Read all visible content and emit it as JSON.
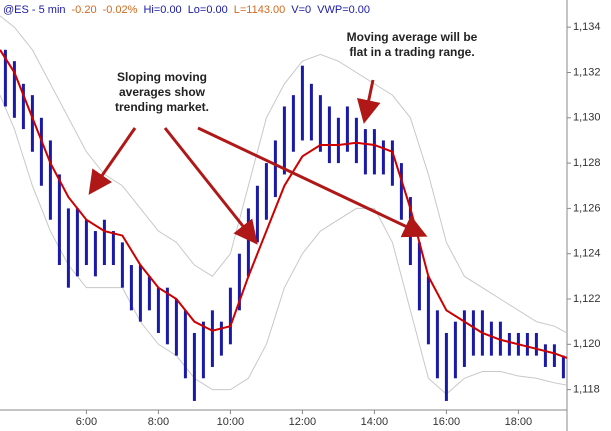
{
  "chart_data": {
    "type": "ohlc",
    "header": [
      {
        "text": "@ES - 5 min",
        "color": "#1a1aa8"
      },
      {
        "text": "-0.20",
        "color": "#d2691e"
      },
      {
        "text": "-0.02%",
        "color": "#d2691e"
      },
      {
        "text": "Hi=0.00",
        "color": "#1a1aa8"
      },
      {
        "text": "Lo=0.00",
        "color": "#1a1aa8"
      },
      {
        "text": "L=1143.00",
        "color": "#d2691e"
      },
      {
        "text": "V=0",
        "color": "#1a1aa8"
      },
      {
        "text": "VWP=0.00",
        "color": "#1a1aa8"
      }
    ],
    "annotations": [
      {
        "lines": [
          "Moving average will be",
          "flat in a trading range."
        ]
      },
      {
        "lines": [
          "Sloping moving",
          "averages show",
          "trending market."
        ]
      }
    ],
    "xlim": [
      3.6,
      19.35
    ],
    "xticks": [
      {
        "value": 6,
        "label": "6:00"
      },
      {
        "value": 8,
        "label": "8:00"
      },
      {
        "value": 10,
        "label": "10:00"
      },
      {
        "value": 12,
        "label": "12:00"
      },
      {
        "value": 14,
        "label": "14:00"
      },
      {
        "value": 16,
        "label": "16:00"
      },
      {
        "value": 18,
        "label": "18:00"
      }
    ],
    "ylim": [
      1117.1,
      1135.2
    ],
    "yticks": [
      {
        "value": 1118,
        "label": "1,118"
      },
      {
        "value": 1120,
        "label": "1,120"
      },
      {
        "value": 1122,
        "label": "1,122"
      },
      {
        "value": 1124,
        "label": "1,124"
      },
      {
        "value": 1126,
        "label": "1,126"
      },
      {
        "value": 1128,
        "label": "1,128"
      },
      {
        "value": 1130,
        "label": "1,130"
      },
      {
        "value": 1132,
        "label": "1,132"
      },
      {
        "value": 1134,
        "label": "1,134"
      }
    ],
    "bars": {
      "color": "#1a1aa8",
      "x": [
        3.75,
        4,
        4.25,
        4.5,
        4.75,
        5,
        5.25,
        5.5,
        5.75,
        6,
        6.25,
        6.5,
        6.75,
        7,
        7.25,
        7.5,
        7.75,
        8,
        8.25,
        8.5,
        8.75,
        9,
        9.25,
        9.5,
        9.75,
        10,
        10.25,
        10.5,
        10.75,
        11,
        11.25,
        11.5,
        11.75,
        12,
        12.25,
        12.5,
        12.75,
        13,
        13.25,
        13.5,
        13.75,
        14,
        14.25,
        14.5,
        14.75,
        15,
        15.25,
        15.5,
        15.75,
        16,
        16.25,
        16.5,
        16.75,
        17,
        17.25,
        17.5,
        17.75,
        18,
        18.25,
        18.5,
        18.75,
        19,
        19.25
      ],
      "high": [
        1133,
        1132.5,
        1131.5,
        1131,
        1130,
        1129,
        1127.5,
        1126,
        1126,
        1125.5,
        1125,
        1125.5,
        1125,
        1124.5,
        1123.5,
        1123.5,
        1123,
        1122.5,
        1122.5,
        1122,
        1121.5,
        1120.5,
        1121,
        1121.5,
        1121,
        1122.5,
        1124,
        1126,
        1127,
        1128,
        1129,
        1130.5,
        1131,
        1132.3,
        1131.5,
        1131,
        1130.5,
        1130,
        1130.5,
        1130,
        1129.5,
        1129.5,
        1129,
        1129,
        1128,
        1126.5,
        1124.5,
        1123,
        1121.5,
        1120.5,
        1121,
        1121.5,
        1121.5,
        1121.5,
        1121,
        1121,
        1120.5,
        1120.5,
        1120.5,
        1120.5,
        1120,
        1120,
        1119.5
      ],
      "low": [
        1130.5,
        1130,
        1129.5,
        1128.5,
        1127,
        1125.5,
        1123.5,
        1122.5,
        1123,
        1123.5,
        1123,
        1123.5,
        1123.5,
        1122.5,
        1121.5,
        1121,
        1121.5,
        1120.5,
        1120,
        1119.5,
        1118.5,
        1117.5,
        1118.5,
        1119,
        1119.5,
        1120,
        1121.5,
        1123,
        1124.5,
        1125.5,
        1126.5,
        1127.5,
        1128.5,
        1129,
        1129,
        1128.5,
        1128,
        1128,
        1128.5,
        1128,
        1127.5,
        1127.5,
        1127.5,
        1127,
        1125.5,
        1123.5,
        1121.5,
        1120,
        1118.5,
        1117.5,
        1118.5,
        1119,
        1119.5,
        1119.5,
        1119.5,
        1119.5,
        1119.5,
        1119.5,
        1119.5,
        1119.5,
        1119,
        1119,
        1118.5
      ]
    },
    "line_x": [
      3.6,
      4,
      4.5,
      5,
      5.5,
      6,
      6.5,
      7,
      7.5,
      8,
      8.5,
      9,
      9.5,
      10,
      10.5,
      11,
      11.5,
      12,
      12.5,
      13,
      13.5,
      14,
      14.5,
      15,
      15.5,
      16,
      16.5,
      17,
      17.5,
      18,
      18.5,
      19,
      19.35
    ],
    "lines": [
      {
        "color": "#c8c8c8",
        "width": 1,
        "values": [
          1134.5,
          1134,
          1133,
          1131.5,
          1130,
          1128.5,
          1127.5,
          1127,
          1126,
          1125,
          1124.5,
          1123.5,
          1123,
          1124,
          1127,
          1130,
          1131.5,
          1132.5,
          1132.8,
          1132.5,
          1132,
          1131.5,
          1131,
          1130,
          1127.5,
          1124.5,
          1123,
          1122.5,
          1122,
          1121.5,
          1121,
          1120.8,
          1120.5
        ]
      },
      {
        "color": "#c8c8c8",
        "width": 1,
        "values": [
          1131,
          1129.5,
          1127,
          1125,
          1123.5,
          1122.5,
          1122.5,
          1122.5,
          1121,
          1120,
          1119.5,
          1118.5,
          1118,
          1118,
          1118.5,
          1120,
          1122.5,
          1124,
          1125,
          1125.5,
          1126,
          1126,
          1124.5,
          1121.5,
          1118.5,
          1117.8,
          1118.5,
          1118.8,
          1118.8,
          1118.6,
          1118.5,
          1118.3,
          1118.2
        ]
      },
      {
        "color": "#cc0000",
        "width": 2,
        "values": [
          1133,
          1132,
          1130,
          1128,
          1126.5,
          1125.5,
          1125,
          1124.8,
          1123.5,
          1122.5,
          1122,
          1121,
          1120.6,
          1120.8,
          1123,
          1125,
          1127,
          1128.3,
          1128.8,
          1128.8,
          1128.9,
          1128.8,
          1128.5,
          1126,
          1123,
          1121.5,
          1121,
          1120.5,
          1120.2,
          1120,
          1119.8,
          1119.6,
          1119.4
        ]
      }
    ]
  }
}
